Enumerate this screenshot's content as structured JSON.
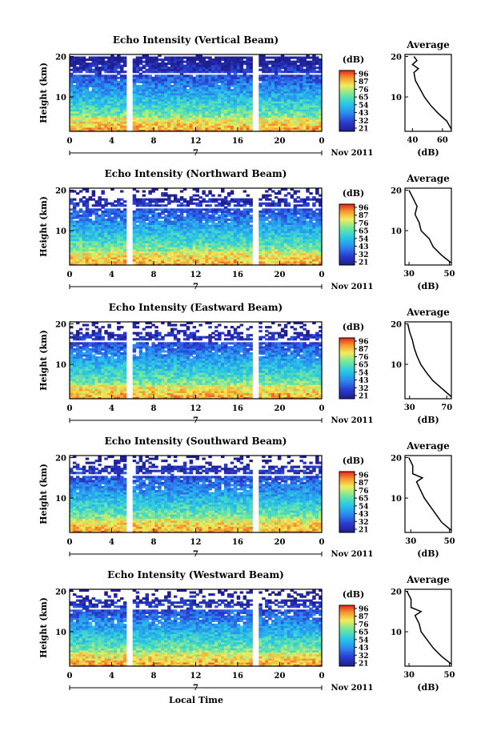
{
  "figure": {
    "xlabel": "Local Time",
    "date_label": "Nov 2011",
    "day_marker": "7"
  },
  "chart_data": [
    {
      "type": "heatmap",
      "title": "Echo Intensity (Vertical Beam)",
      "ylabel": "Height (km)",
      "xlabel": "Local Time",
      "x_ticks": [
        "0",
        "4",
        "8",
        "12",
        "16",
        "20",
        "0"
      ],
      "y_ticks": [
        "10",
        "20"
      ],
      "xlim": [
        0,
        24
      ],
      "ylim": [
        1.5,
        20.5
      ],
      "colorbar": {
        "label": "(dB)",
        "ticks": [
          "96",
          "87",
          "76",
          "65",
          "54",
          "43",
          "32",
          "21"
        ],
        "range": [
          21,
          96
        ]
      },
      "profile": {
        "title": "Average",
        "xlabel": "(dB)",
        "x_ticks": [
          "40",
          "60"
        ],
        "xlim": [
          35,
          66
        ],
        "y_ticks": [
          "10",
          "20"
        ],
        "heights": [
          2,
          4,
          6,
          8,
          10,
          12,
          14,
          16,
          17,
          18,
          19,
          20
        ],
        "values": [
          66,
          63,
          57,
          52,
          48,
          45,
          42,
          41,
          44,
          40,
          43,
          41
        ]
      }
    },
    {
      "type": "heatmap",
      "title": "Echo Intensity (Northward Beam)",
      "ylabel": "Height (km)",
      "xlabel": "Local Time",
      "x_ticks": [
        "0",
        "4",
        "8",
        "12",
        "16",
        "20",
        "0"
      ],
      "y_ticks": [
        "10",
        "20"
      ],
      "xlim": [
        0,
        24
      ],
      "ylim": [
        1.5,
        20.5
      ],
      "colorbar": {
        "label": "(dB)",
        "ticks": [
          "96",
          "87",
          "76",
          "65",
          "54",
          "43",
          "32",
          "21"
        ],
        "range": [
          21,
          96
        ]
      },
      "profile": {
        "title": "Average",
        "xlabel": "(dB)",
        "x_ticks": [
          "30",
          "50"
        ],
        "xlim": [
          28,
          51
        ],
        "y_ticks": [
          "10",
          "20"
        ],
        "heights": [
          2,
          4,
          6,
          8,
          10,
          12,
          14,
          16,
          18,
          20
        ],
        "values": [
          51,
          46,
          42,
          40,
          36,
          35,
          33,
          34,
          32,
          30
        ]
      }
    },
    {
      "type": "heatmap",
      "title": "Echo Intensity (Eastward Beam)",
      "ylabel": "Height (km)",
      "xlabel": "Local Time",
      "x_ticks": [
        "0",
        "4",
        "8",
        "12",
        "16",
        "20",
        "0"
      ],
      "y_ticks": [
        "10",
        "20"
      ],
      "xlim": [
        0,
        24
      ],
      "ylim": [
        1.5,
        20.5
      ],
      "colorbar": {
        "label": "(dB)",
        "ticks": [
          "96",
          "87",
          "76",
          "65",
          "54",
          "43",
          "32",
          "21"
        ],
        "range": [
          21,
          96
        ]
      },
      "profile": {
        "title": "Average",
        "xlabel": "(dB)",
        "x_ticks": [
          "30",
          "70"
        ],
        "xlim": [
          25,
          75
        ],
        "y_ticks": [
          "10",
          "20"
        ],
        "heights": [
          2,
          4,
          6,
          8,
          10,
          12,
          14,
          16,
          18,
          20
        ],
        "values": [
          75,
          65,
          55,
          48,
          42,
          38,
          35,
          33,
          30,
          28
        ]
      }
    },
    {
      "type": "heatmap",
      "title": "Echo Intensity (Southward Beam)",
      "ylabel": "Height (km)",
      "xlabel": "Local Time",
      "x_ticks": [
        "0",
        "4",
        "8",
        "12",
        "16",
        "20",
        "0"
      ],
      "y_ticks": [
        "10",
        "20"
      ],
      "xlim": [
        0,
        24
      ],
      "ylim": [
        1.5,
        20.5
      ],
      "colorbar": {
        "label": "(dB)",
        "ticks": [
          "96",
          "87",
          "76",
          "65",
          "54",
          "43",
          "32",
          "21"
        ],
        "range": [
          21,
          96
        ]
      },
      "profile": {
        "title": "Average",
        "xlabel": "(dB)",
        "x_ticks": [
          "30",
          "50"
        ],
        "xlim": [
          27,
          51
        ],
        "y_ticks": [
          "10",
          "20"
        ],
        "heights": [
          2,
          4,
          6,
          8,
          10,
          12,
          14,
          15,
          16,
          18,
          20
        ],
        "values": [
          51,
          46,
          43,
          40,
          37,
          35,
          33,
          36,
          31,
          31,
          29
        ]
      }
    },
    {
      "type": "heatmap",
      "title": "Echo Intensity (Westward Beam)",
      "ylabel": "Height (km)",
      "xlabel": "Local Time",
      "x_ticks": [
        "0",
        "4",
        "8",
        "12",
        "16",
        "20",
        "0"
      ],
      "y_ticks": [
        "10",
        "20"
      ],
      "xlim": [
        0,
        24
      ],
      "ylim": [
        1.5,
        20.5
      ],
      "colorbar": {
        "label": "(dB)",
        "ticks": [
          "96",
          "87",
          "76",
          "65",
          "54",
          "43",
          "32",
          "21"
        ],
        "range": [
          21,
          96
        ]
      },
      "profile": {
        "title": "Average",
        "xlabel": "(dB)",
        "x_ticks": [
          "30",
          "50"
        ],
        "xlim": [
          28,
          51
        ],
        "y_ticks": [
          "10",
          "20"
        ],
        "heights": [
          2,
          4,
          6,
          8,
          10,
          12,
          14,
          15,
          16,
          18,
          20
        ],
        "values": [
          51,
          46,
          42,
          39,
          36,
          35,
          33,
          36,
          31,
          31,
          29
        ]
      }
    }
  ]
}
